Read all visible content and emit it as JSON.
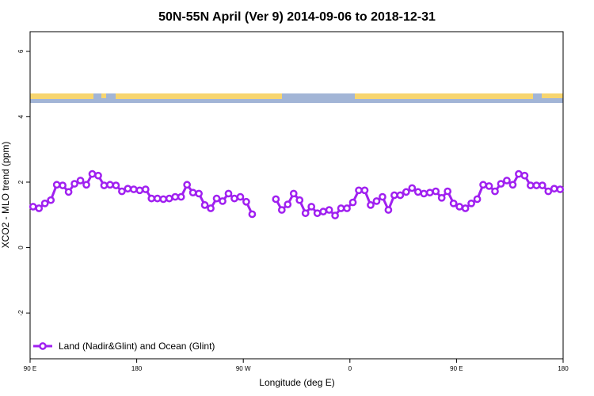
{
  "chart_data": {
    "type": "line",
    "title": "50N-55N April (Ver 9)   2014-09-06 to 2018-12-31",
    "x_label": "Longitude (deg E)",
    "y_label": "XCO2 - MLO trend (ppm)",
    "x": [
      92.5,
      97.5,
      102.5,
      107.5,
      112.5,
      117.5,
      122.5,
      127.5,
      132.5,
      137.5,
      142.5,
      147.5,
      152.5,
      157.5,
      162.5,
      167.5,
      172.5,
      177.5,
      182.5,
      187.5,
      192.5,
      197.5,
      202.5,
      207.5,
      212.5,
      217.5,
      222.5,
      227.5,
      232.5,
      237.5,
      242.5,
      247.5,
      252.5,
      257.5,
      262.5,
      267.5,
      272.5,
      277.5,
      282.5,
      287.5,
      292.5,
      297.5,
      302.5,
      307.5,
      312.5,
      317.5,
      322.5,
      327.5,
      332.5,
      337.5,
      342.5,
      347.5,
      352.5,
      357.5,
      362.5,
      367.5,
      372.5,
      377.5,
      382.5,
      387.5,
      392.5,
      397.5,
      402.5,
      407.5,
      412.5,
      417.5,
      422.5,
      427.5,
      432.5,
      437.5,
      442.5,
      447.5,
      452.5,
      457.5,
      462.5,
      467.5,
      472.5,
      477.5,
      482.5,
      487.5,
      492.5,
      497.5,
      502.5,
      507.5,
      512.5,
      517.5,
      522.5,
      527.5,
      532.5,
      537.5
    ],
    "series": [
      {
        "name": "Land (Nadir&Glint) and Ocean (Glint)",
        "color": "#a020f0",
        "values": [
          1.25,
          1.2,
          1.35,
          1.45,
          1.92,
          1.9,
          1.7,
          1.95,
          2.05,
          1.92,
          2.25,
          2.2,
          1.9,
          1.92,
          1.9,
          1.72,
          1.8,
          1.78,
          1.75,
          1.78,
          1.5,
          1.5,
          1.48,
          1.5,
          1.55,
          1.55,
          1.92,
          1.68,
          1.65,
          1.3,
          1.2,
          1.5,
          1.42,
          1.65,
          1.5,
          1.55,
          1.4,
          1.02,
          null,
          null,
          null,
          1.48,
          1.15,
          1.32,
          1.65,
          1.45,
          1.05,
          1.25,
          1.05,
          1.1,
          1.15,
          0.98,
          1.2,
          1.2,
          1.38,
          1.75,
          1.75,
          1.3,
          1.42,
          1.55,
          1.15,
          1.6,
          1.6,
          1.7,
          1.82,
          1.7,
          1.65,
          1.68,
          1.72,
          1.52,
          1.72,
          1.35,
          1.25,
          1.2,
          1.35,
          1.48,
          1.92,
          1.88,
          1.72,
          1.95,
          2.05,
          1.92,
          2.25,
          2.2,
          1.9,
          1.9,
          1.9,
          1.72,
          1.8,
          1.78
        ]
      }
    ],
    "xlim": [
      90,
      540
    ],
    "xticks": [
      {
        "value": 90,
        "label": "90 E"
      },
      180,
      {
        "value": 270,
        "label": "90 W"
      },
      {
        "value": 360,
        "label": "0"
      },
      {
        "value": 450,
        "label": "90 E"
      },
      {
        "value": 540,
        "label": "180"
      }
    ],
    "ylim": [
      -3.4,
      6.6
    ],
    "yticks": [
      -2,
      0,
      2,
      4,
      6
    ],
    "legend": "bottom left"
  }
}
